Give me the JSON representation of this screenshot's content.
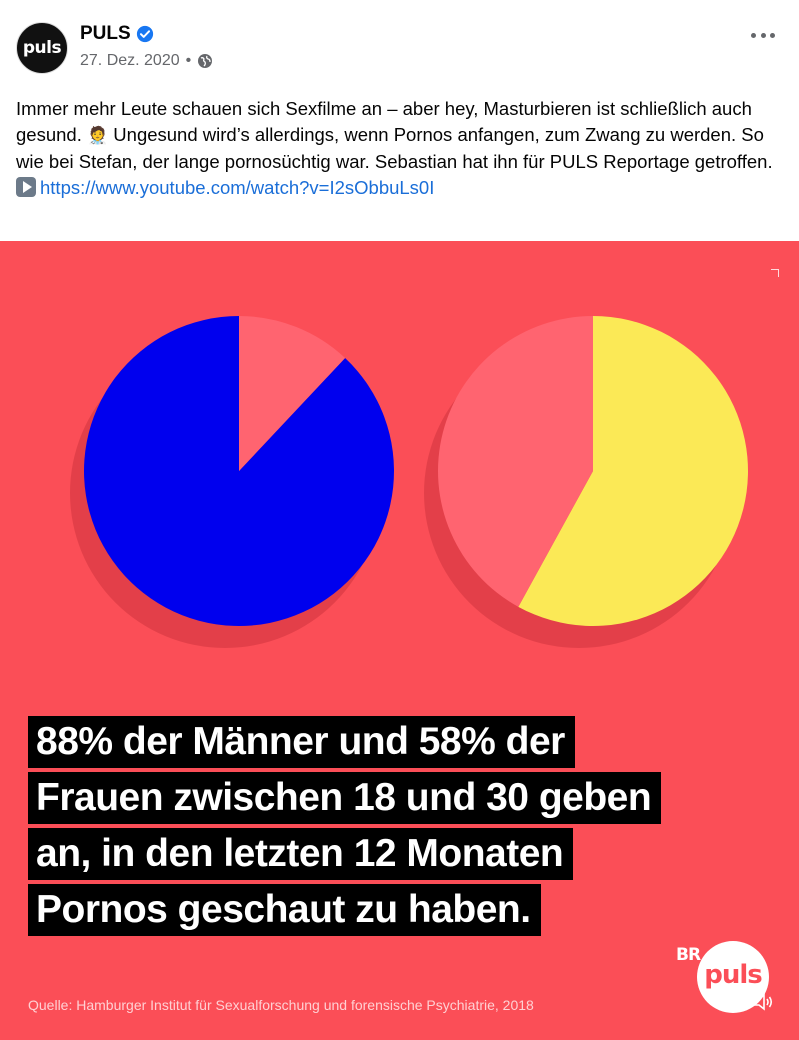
{
  "post": {
    "author": "PULS",
    "date": "27. Dez. 2020",
    "separator": "•",
    "avatar_text": "puls",
    "text_parts": [
      "Immer mehr Leute schauen sich Sexfilme an – aber hey, Masturbieren ist schließlich auch gesund. ",
      " Ungesund wird’s allerdings, wenn Pornos anfangen, zum Zwang zu werden. So wie bei Stefan, der lange pornosüchtig war. Sebastian hat ihn für PULS Reportage getroffen. "
    ],
    "link": "https://www.youtube.com/watch?v=I2sObbuLs0I"
  },
  "graphic": {
    "headline_lines": [
      "88% der Männer und 58% der",
      "Frauen zwischen 18 und 30 geben",
      "an, in den letzten 12 Monaten",
      "Pornos geschaut zu haben."
    ],
    "source": "Quelle: Hamburger Institut für Sexualforschung und forensische Psychiatrie, 2018",
    "br_logo": "BR",
    "puls_logo": "puls",
    "background": "#fb4e57"
  },
  "chart_data": [
    {
      "type": "pie",
      "slices": [
        {
          "value": 88,
          "color": "#0000ee"
        },
        {
          "value": 12,
          "color": "#ff6470"
        }
      ]
    },
    {
      "type": "pie",
      "slices": [
        {
          "value": 58,
          "color": "#fbe956"
        },
        {
          "value": 42,
          "color": "#ff6470"
        }
      ]
    }
  ]
}
